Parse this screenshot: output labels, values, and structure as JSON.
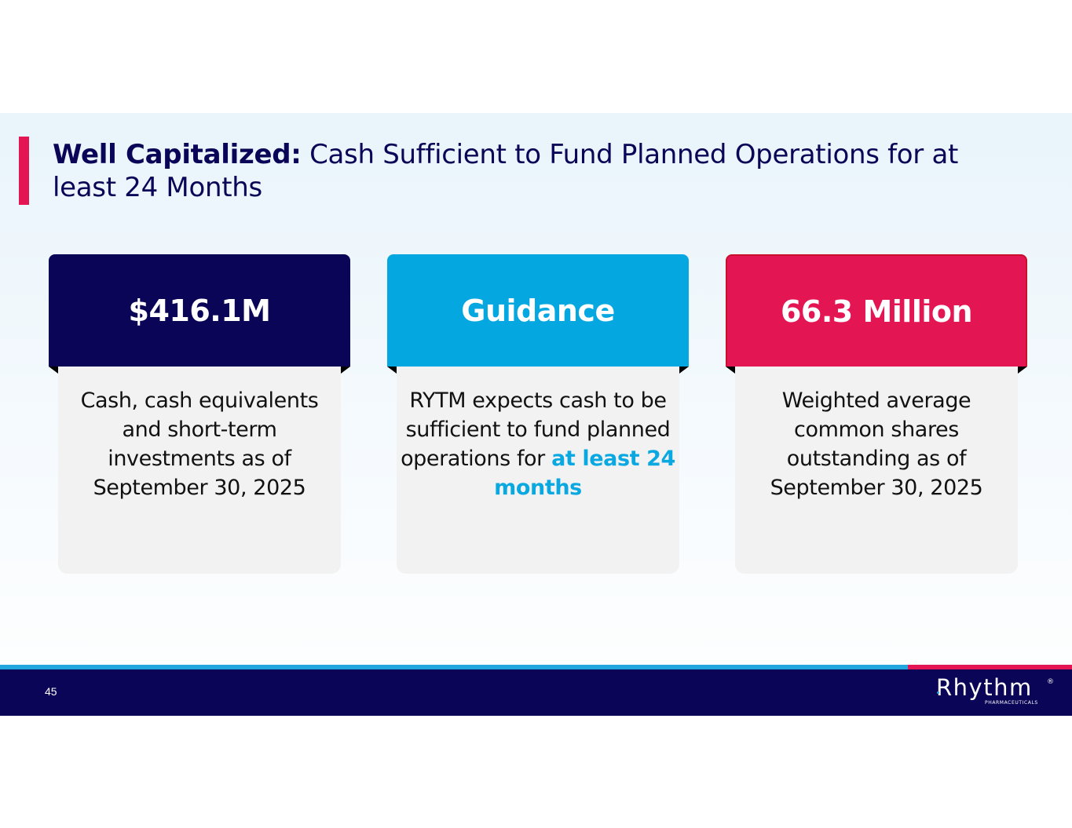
{
  "title": {
    "bold": "Well Capitalized:",
    "rest": " Cash Sufficient to Fund Planned Operations for at least 24 Months"
  },
  "cards": [
    {
      "header": "$416.1M",
      "text": "Cash, cash equivalents and short-term investments as of September 30, 2025"
    },
    {
      "header": "Guidance",
      "text_before": "RYTM expects cash to be sufficient to fund planned operations for ",
      "text_highlight": "at least 24 months"
    },
    {
      "header": "66.3 Million",
      "text": "Weighted average common shares outstanding as of September 30, 2025"
    }
  ],
  "footer": {
    "page_number": "45",
    "logo_text": "Rhythm",
    "logo_reg": "®",
    "logo_sub": "PHARMACEUTICALS"
  },
  "colors": {
    "navy": "#0b0557",
    "blue": "#05a7e0",
    "red": "#e31552",
    "highlight": "#0aa8e0"
  }
}
